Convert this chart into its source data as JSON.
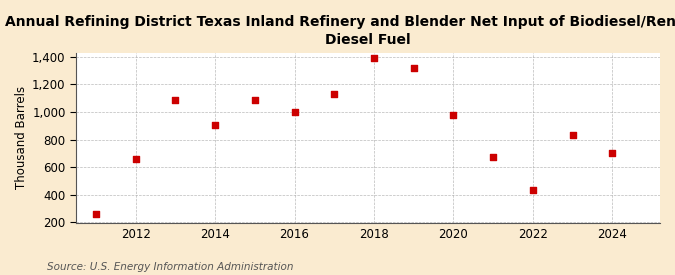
{
  "title": "Annual Refining District Texas Inland Refinery and Blender Net Input of Biodiesel/Renewable\nDiesel Fuel",
  "ylabel": "Thousand Barrels",
  "source": "Source: U.S. Energy Information Administration",
  "x": [
    2011,
    2012,
    2013,
    2014,
    2015,
    2016,
    2017,
    2018,
    2019,
    2020,
    2021,
    2022,
    2023,
    2024
  ],
  "y": [
    260,
    660,
    1085,
    905,
    1085,
    1000,
    1130,
    1395,
    1320,
    980,
    670,
    435,
    830,
    705
  ],
  "marker_color": "#cc0000",
  "marker": "s",
  "marker_size": 4,
  "xlim": [
    2010.5,
    2025.2
  ],
  "ylim": [
    195,
    1430
  ],
  "yticks": [
    200,
    400,
    600,
    800,
    1000,
    1200,
    1400
  ],
  "xticks": [
    2012,
    2014,
    2016,
    2018,
    2020,
    2022,
    2024
  ],
  "background_color": "#faebd0",
  "plot_bg_color": "#ffffff",
  "grid_color": "#aaaaaa",
  "title_fontsize": 10,
  "axis_fontsize": 8.5,
  "source_fontsize": 7.5
}
